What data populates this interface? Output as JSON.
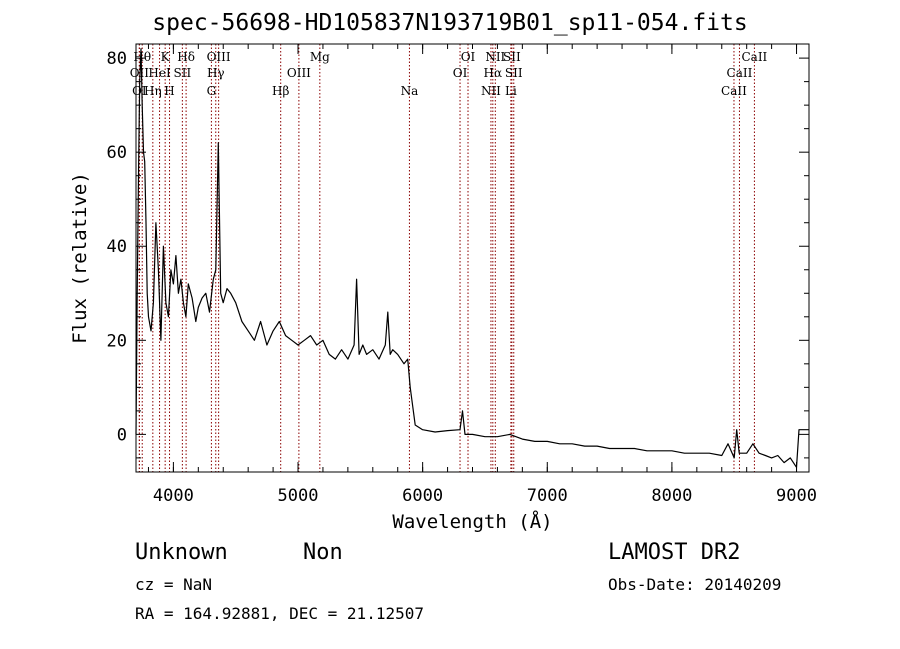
{
  "header": {
    "title": "spec-56698-HD105837N193719B01_sp11-054.fits"
  },
  "info": {
    "object_class": "Unknown",
    "object_subclass": "Non",
    "survey": "LAMOST DR2",
    "cz": "cz = NaN",
    "obs_date": "Obs-Date: 20140209",
    "radec": "RA = 164.92881, DEC =  21.12507"
  },
  "colors": {
    "spectrum": "#000000",
    "line_marker": "#8b0000",
    "axis": "#000000"
  },
  "chart_data": {
    "type": "line",
    "title": "spec-56698-HD105837N193719B01_sp11-054.fits",
    "xlabel": "Wavelength (Å)",
    "ylabel": "Flux (relative)",
    "xlim": [
      3700,
      9100
    ],
    "ylim": [
      -8,
      83
    ],
    "x_ticks": [
      4000,
      5000,
      6000,
      7000,
      8000,
      9000
    ],
    "y_ticks": [
      0,
      20,
      40,
      60,
      80
    ],
    "x": [
      3700,
      3710,
      3720,
      3730,
      3740,
      3750,
      3760,
      3770,
      3780,
      3790,
      3800,
      3820,
      3840,
      3860,
      3880,
      3900,
      3920,
      3940,
      3960,
      3980,
      4000,
      4020,
      4040,
      4060,
      4080,
      4100,
      4120,
      4150,
      4180,
      4200,
      4230,
      4260,
      4290,
      4320,
      4340,
      4360,
      4380,
      4400,
      4430,
      4460,
      4500,
      4550,
      4600,
      4650,
      4700,
      4750,
      4800,
      4850,
      4900,
      4950,
      5000,
      5050,
      5100,
      5150,
      5200,
      5250,
      5300,
      5350,
      5400,
      5450,
      5470,
      5490,
      5520,
      5550,
      5600,
      5650,
      5700,
      5720,
      5740,
      5760,
      5800,
      5850,
      5880,
      5900,
      5920,
      5940,
      6000,
      6100,
      6200,
      6300,
      6320,
      6340,
      6400,
      6500,
      6600,
      6700,
      6800,
      6900,
      7000,
      7100,
      7200,
      7300,
      7400,
      7500,
      7600,
      7700,
      7800,
      7900,
      8000,
      8100,
      8200,
      8300,
      8400,
      8450,
      8500,
      8520,
      8540,
      8600,
      8650,
      8700,
      8750,
      8800,
      8850,
      8900,
      8950,
      9000,
      9020,
      9050,
      9100
    ],
    "y": [
      0,
      30,
      55,
      75,
      82,
      70,
      60,
      58,
      45,
      30,
      25,
      22,
      28,
      45,
      35,
      20,
      40,
      28,
      25,
      35,
      32,
      38,
      30,
      33,
      28,
      25,
      32,
      29,
      24,
      27,
      29,
      30,
      26,
      33,
      35,
      62,
      30,
      28,
      31,
      30,
      28,
      24,
      22,
      20,
      24,
      19,
      22,
      24,
      21,
      20,
      19,
      20,
      21,
      19,
      20,
      17,
      16,
      18,
      16,
      19,
      33,
      17,
      19,
      17,
      18,
      16,
      19,
      26,
      17,
      18,
      17,
      15,
      16,
      10,
      6,
      2,
      1,
      0.5,
      0.8,
      1,
      5,
      0,
      0,
      -0.5,
      -0.5,
      0,
      -1,
      -1.5,
      -1.5,
      -2,
      -2,
      -2.5,
      -2.5,
      -3,
      -3,
      -3,
      -3.5,
      -3.5,
      -3.5,
      -4,
      -4,
      -4,
      -4.5,
      -2,
      -5,
      1,
      -4,
      -4,
      -2,
      -4,
      -4.5,
      -5,
      -4.5,
      -6,
      -5,
      -7,
      1,
      1,
      1
    ],
    "line_labels": [
      {
        "label": "OII",
        "wavelength": 3727,
        "row": 2
      },
      {
        "label": "OI",
        "wavelength": 3727,
        "row": 3
      },
      {
        "label": "Hθ",
        "wavelength": 3750,
        "row": 1
      },
      {
        "label": "Hη",
        "wavelength": 3835,
        "row": 3
      },
      {
        "label": "HeI",
        "wavelength": 3889,
        "row": 2
      },
      {
        "label": "K",
        "wavelength": 3934,
        "row": 1
      },
      {
        "label": "H",
        "wavelength": 3969,
        "row": 3
      },
      {
        "label": "SII",
        "wavelength": 4072,
        "row": 2
      },
      {
        "label": "Hδ",
        "wavelength": 4102,
        "row": 1
      },
      {
        "label": "G",
        "wavelength": 4305,
        "row": 3
      },
      {
        "label": "Hγ",
        "wavelength": 4340,
        "row": 2
      },
      {
        "label": "OIII",
        "wavelength": 4363,
        "row": 1
      },
      {
        "label": "Hβ",
        "wavelength": 4861,
        "row": 3
      },
      {
        "label": "OIII",
        "wavelength": 5007,
        "row": 2
      },
      {
        "label": "Mg",
        "wavelength": 5175,
        "row": 1
      },
      {
        "label": "Na",
        "wavelength": 5894,
        "row": 3
      },
      {
        "label": "OI",
        "wavelength": 6300,
        "row": 2
      },
      {
        "label": "OI",
        "wavelength": 6364,
        "row": 1
      },
      {
        "label": "NII",
        "wavelength": 6548,
        "row": 3
      },
      {
        "label": "Hα",
        "wavelength": 6563,
        "row": 2
      },
      {
        "label": "NII",
        "wavelength": 6583,
        "row": 1
      },
      {
        "label": "SII",
        "wavelength": 6716,
        "row": 1
      },
      {
        "label": "Li",
        "wavelength": 6708,
        "row": 3
      },
      {
        "label": "SII",
        "wavelength": 6731,
        "row": 2
      },
      {
        "label": "CaII",
        "wavelength": 8498,
        "row": 3
      },
      {
        "label": "CaII",
        "wavelength": 8542,
        "row": 2
      },
      {
        "label": "CaII",
        "wavelength": 8662,
        "row": 1
      }
    ]
  }
}
